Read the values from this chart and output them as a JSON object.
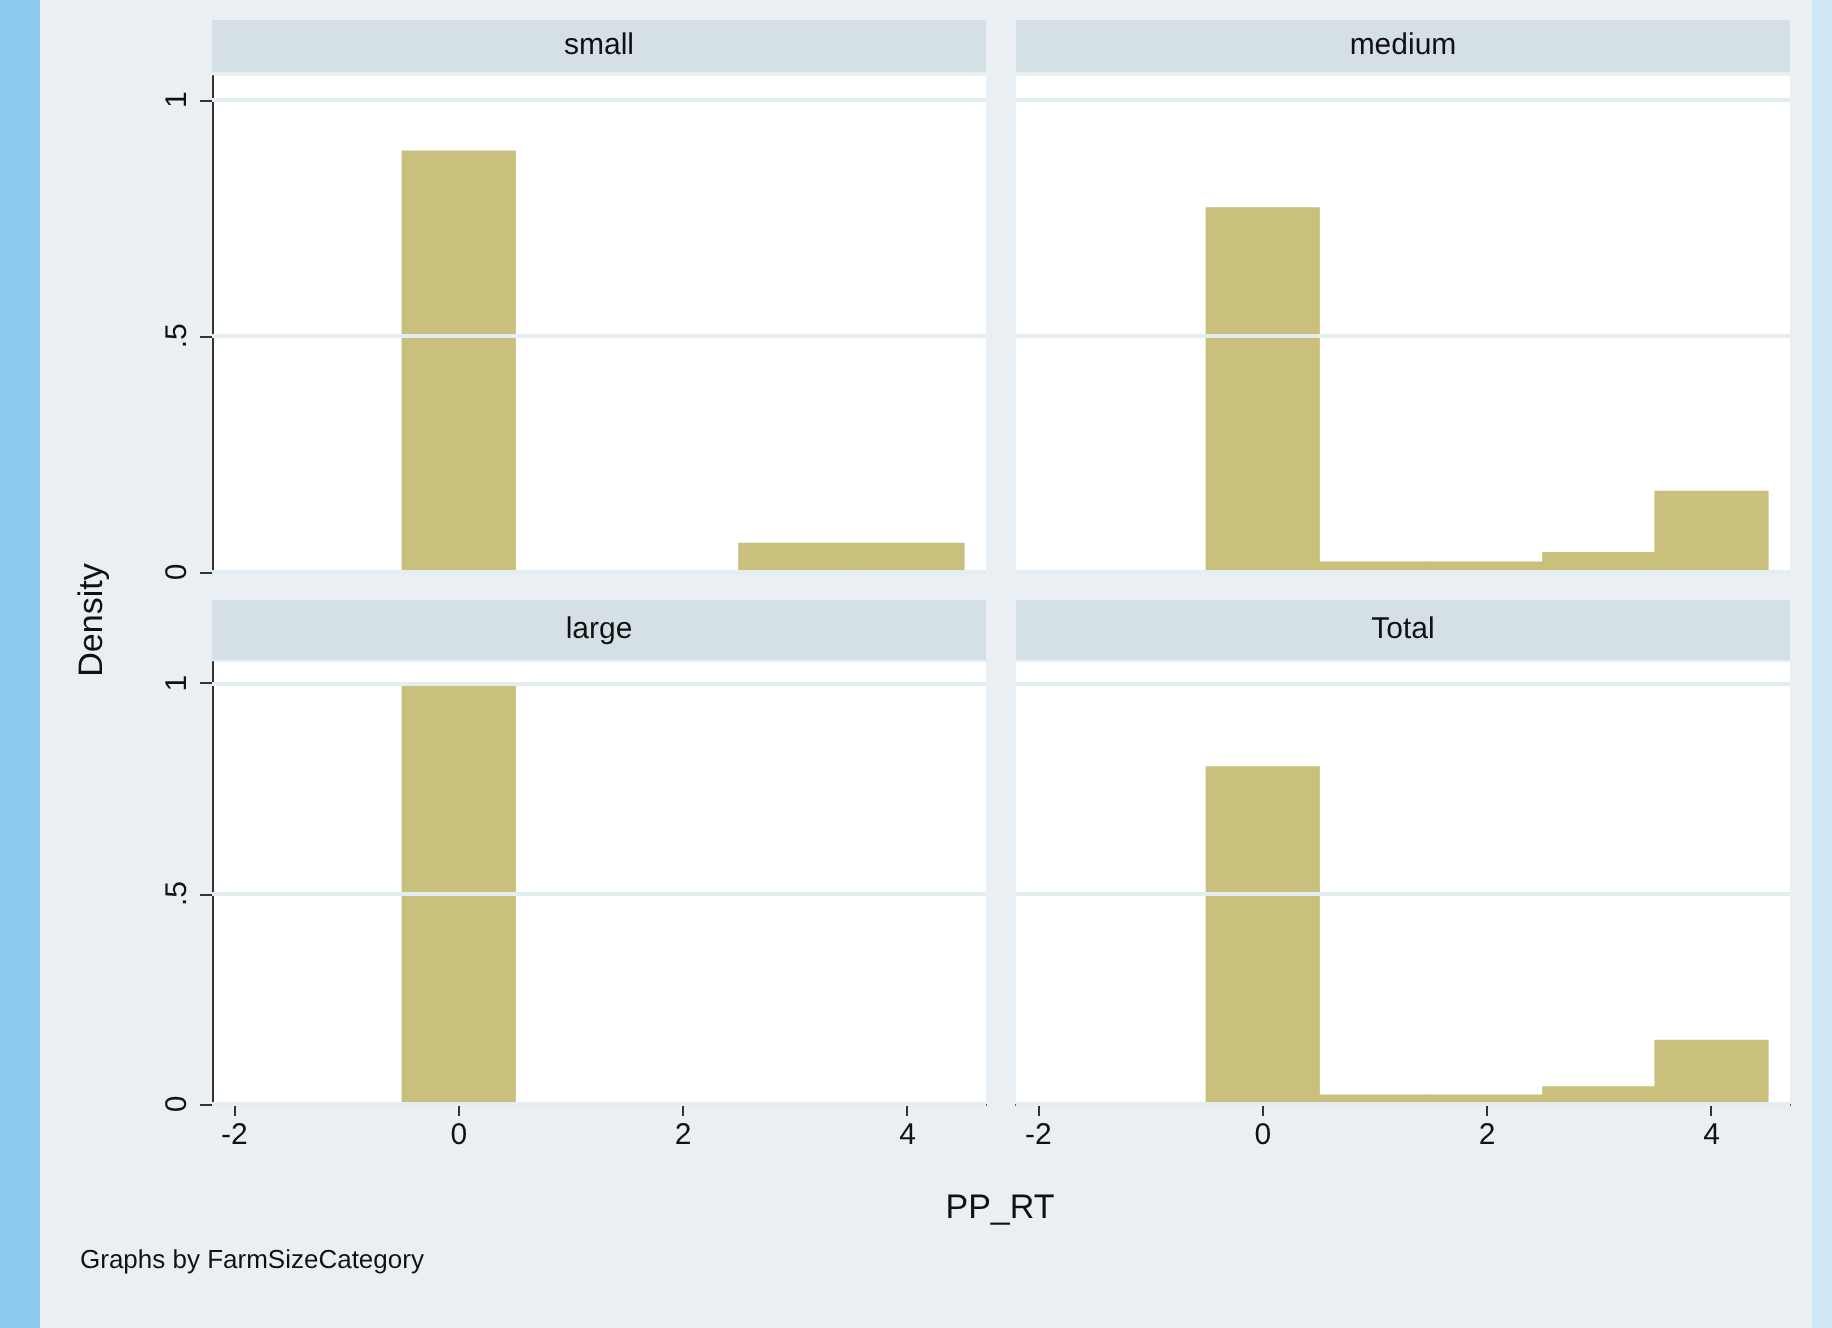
{
  "chart_data": [
    {
      "type": "histogram",
      "title": "small",
      "ylabel": "Density",
      "bins": [
        -0.5,
        0.5,
        1.5,
        2.5,
        3.5,
        4.5
      ],
      "values": [
        0.89,
        0,
        0,
        0.06,
        0.06
      ],
      "color": "#c8c07c",
      "xlim": [
        -2.2,
        4.7
      ],
      "ylim": [
        0,
        1.05
      ],
      "yticks": [
        0,
        {
          "value": 0.5,
          "label": ".5"
        },
        1
      ],
      "grid": "y",
      "tick_labels": "y"
    },
    {
      "type": "histogram",
      "title": "medium",
      "bins": [
        -0.5,
        0.5,
        1.5,
        2.5,
        3.5,
        4.5
      ],
      "values": [
        0.77,
        0.02,
        0.02,
        0.04,
        0.17
      ],
      "color": "#c8c07c",
      "xlim": [
        -2.2,
        4.7
      ],
      "ylim": [
        0,
        1.05
      ],
      "yticks": [
        0,
        0.5,
        1
      ],
      "grid": "y",
      "tick_labels": false
    },
    {
      "type": "histogram",
      "title": "large",
      "xlabel": "PP_RT",
      "annotations": [
        "Graphs by FarmSizeCategory"
      ],
      "bins": [
        -0.5,
        0.5,
        1.5,
        2.5,
        3.5,
        4.5
      ],
      "values": [
        1,
        0,
        0,
        0,
        0
      ],
      "color": "#c8c07c",
      "xlim": [
        -2.2,
        4.7
      ],
      "xticks": [
        -2,
        0,
        2,
        4
      ],
      "ylim": [
        0,
        1.05
      ],
      "yticks": [
        0,
        {
          "value": 0.5,
          "label": ".5"
        },
        1
      ],
      "grid": "y"
    },
    {
      "type": "histogram",
      "title": "Total",
      "bins": [
        -0.5,
        0.5,
        1.5,
        2.5,
        3.5,
        4.5
      ],
      "values": [
        0.8,
        0.02,
        0.02,
        0.04,
        0.15
      ],
      "color": "#c8c07c",
      "xlim": [
        -2.2,
        4.7
      ],
      "xticks": [
        -2,
        0,
        2,
        4
      ],
      "ylim": [
        0,
        1.05
      ],
      "yticks": [
        0,
        0.5,
        1
      ],
      "grid": "y",
      "tick_labels": "x"
    }
  ]
}
